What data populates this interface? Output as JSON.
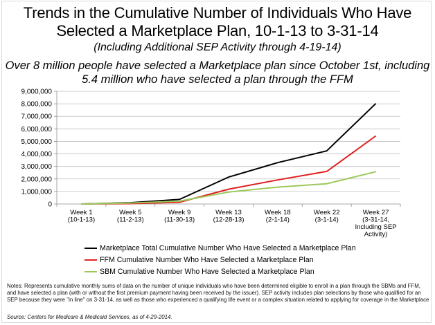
{
  "title": {
    "line1": "Trends in the Cumulative Number of Individuals Who Have",
    "line2": "Selected a Marketplace Plan, 10-1-13 to 3-31-14"
  },
  "subtitle": "(Including Additional SEP Activity through 4-19-14)",
  "highlight": {
    "line1": "Over 8 million people have selected a Marketplace plan since October 1st, including",
    "line2": "5.4 million who have selected a plan through the FFM"
  },
  "chart_data": {
    "type": "line",
    "title": "Trends in the Cumulative Number of Individuals Who Have Selected a Marketplace Plan, 10-1-13 to 3-31-14",
    "xlabel": "",
    "ylabel": "",
    "categories": [
      [
        "Week 1",
        "(10-1-13)"
      ],
      [
        "Week 5",
        "(11-2-13)"
      ],
      [
        "Week 9",
        "(11-30-13)"
      ],
      [
        "Week 13",
        "(12-28-13)"
      ],
      [
        "Week 18",
        "(2-1-14)"
      ],
      [
        "Week 22",
        "(3-1-14)"
      ],
      [
        "Week 27",
        "(3-31-14,",
        "Including SEP",
        "Activity)"
      ]
    ],
    "x_weeks": [
      1,
      5,
      9,
      13,
      18,
      22,
      27
    ],
    "ylim": [
      0,
      9000000
    ],
    "yticks": [
      "0",
      "1,000,000",
      "2,000,000",
      "3,000,000",
      "4,000,000",
      "5,000,000",
      "6,000,000",
      "7,000,000",
      "8,000,000",
      "9,000,000"
    ],
    "grid": true,
    "legend_position": "bottom",
    "series": [
      {
        "name": "Marketplace Total Cumulative Number Who Have Selected a Marketplace Plan",
        "color": "#000000",
        "values": [
          0,
          106000,
          365000,
          2150000,
          3300000,
          4240000,
          8020000
        ]
      },
      {
        "name": "FFM Cumulative Number Who Have Selected a Marketplace Plan",
        "color": "#e02020",
        "values": [
          0,
          27000,
          137000,
          1180000,
          1920000,
          2600000,
          5440000
        ]
      },
      {
        "name": "SBM Cumulative Number Who Have Selected a Marketplace Plan",
        "color": "#9bc85a",
        "values": [
          0,
          79000,
          227000,
          950000,
          1350000,
          1620000,
          2580000
        ]
      }
    ]
  },
  "notes": "Notes:  Represents cumulative monthly sums of data on the number of unique individuals who have been determined eligible to enroll in a plan through the SBMs and FFM, and have selected a plan (with or without the first premium payment having been received by the issuer). SEP activity includes plan selections by those who qualified for an SEP because they were \"in line\" on 3-31-14, as well as those who experienced a qualifying life event or a complex situation related to applying for coverage in the Marketplace",
  "source": "Source:  Centers for Medicare & Medicaid Services, as of 4-29-2014."
}
